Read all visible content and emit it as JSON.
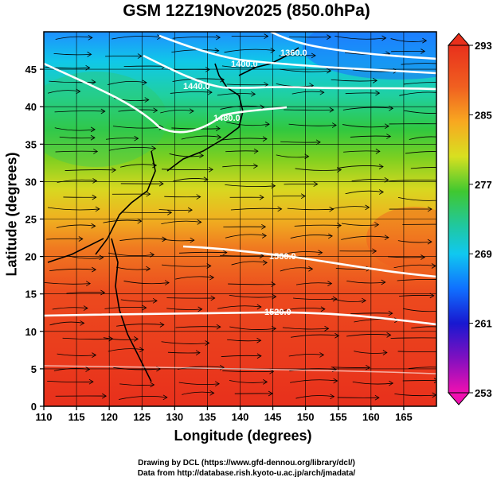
{
  "title": "GSM 12Z19Nov2025 (850.0hPa)",
  "x_axis": {
    "label": "Longitude (degrees)",
    "range": [
      110,
      170
    ],
    "ticks": [
      "110",
      "115",
      "120",
      "125",
      "130",
      "135",
      "140",
      "145",
      "150",
      "155",
      "160",
      "165"
    ]
  },
  "y_axis": {
    "label": "Latitude  (degrees)",
    "range": [
      0,
      50
    ],
    "ticks": [
      "0",
      "5",
      "10",
      "15",
      "20",
      "25",
      "30",
      "35",
      "40",
      "45"
    ]
  },
  "colorbar": {
    "range": [
      253,
      293
    ],
    "ticks": [
      "293",
      "285",
      "277",
      "269",
      "261",
      "253"
    ]
  },
  "contours": [
    {
      "label": "1360.0"
    },
    {
      "label": "1400.0"
    },
    {
      "label": "1440.0"
    },
    {
      "label": "1480.0"
    },
    {
      "label": "1560.0"
    },
    {
      "label": "1520.0"
    }
  ],
  "credits": {
    "line1": "Drawing by DCL (https://www.gfd-dennou.org/library/dcl/)",
    "line2": "Data from http://database.rish.kyoto-u.ac.jp/arch/jmadata/"
  },
  "colors": {
    "warm": "#e8321e",
    "mid": "#20c020",
    "cool": "#1890ff",
    "cold": "#1a1acc",
    "contour": "#ffffff",
    "streamline": "#000000"
  }
}
